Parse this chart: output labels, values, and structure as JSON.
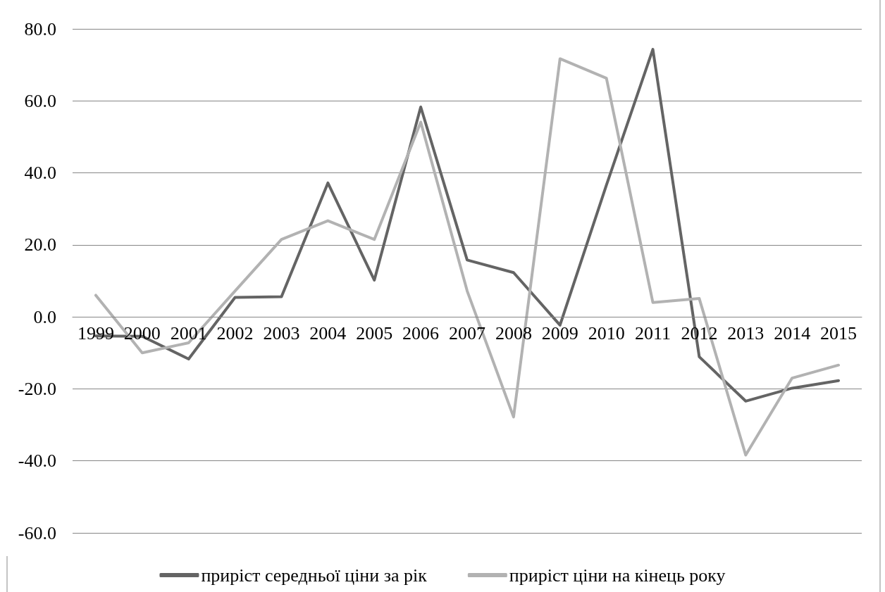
{
  "chart_data": {
    "type": "line",
    "categories": [
      "1999",
      "2000",
      "2001",
      "2002",
      "2003",
      "2004",
      "2005",
      "2006",
      "2007",
      "2008",
      "2009",
      "2010",
      "2011",
      "2012",
      "2013",
      "2014",
      "2015"
    ],
    "series": [
      {
        "name": "приріст середньої ціни за рік",
        "color": "#646464",
        "values": [
          -5.3,
          -5.4,
          -11.7,
          5.4,
          5.6,
          37.2,
          10.2,
          58.3,
          15.8,
          12.3,
          -2.3,
          36.6,
          74.3,
          -11.1,
          -23.4,
          -19.8,
          -17.7
        ]
      },
      {
        "name": "приріст ціни на кінець року",
        "color": "#b2b2b2",
        "values": [
          6.0,
          -10.0,
          -7.2,
          7.2,
          21.5,
          26.7,
          21.5,
          54.1,
          7.2,
          -27.8,
          71.7,
          66.3,
          4.0,
          5.1,
          -38.4,
          -17.0,
          -13.4
        ]
      }
    ],
    "ylim": [
      -60,
      80
    ],
    "yticks": [
      {
        "value": -60,
        "label": "-60.0"
      },
      {
        "value": -40,
        "label": "-40.0"
      },
      {
        "value": -20,
        "label": "-20.0"
      },
      {
        "value": 0,
        "label": "0.0"
      },
      {
        "value": 20,
        "label": "20.0"
      },
      {
        "value": 40,
        "label": "40.0"
      },
      {
        "value": 60,
        "label": "60.0"
      },
      {
        "value": 80,
        "label": "80.0"
      }
    ],
    "grid": "y",
    "legend": "bottom",
    "marker": "none",
    "line_style": "solid"
  }
}
